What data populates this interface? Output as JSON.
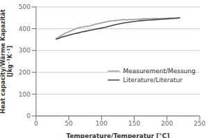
{
  "chart_data": {
    "type": "line",
    "xlabel": "Temperature/Temperatur [°C]",
    "ylabel": "Heat capacity/Wärme Kapazität\n[Jkg⁻¹K⁻¹]",
    "xlim": [
      0,
      250
    ],
    "ylim": [
      0,
      500
    ],
    "xticks": [
      0,
      50,
      100,
      150,
      200,
      250
    ],
    "yticks": [
      0,
      100,
      200,
      300,
      400,
      500
    ],
    "grid": true,
    "legend": "right",
    "series": [
      {
        "name": "Measurement/Messung",
        "color": "#999999",
        "x": [
          30,
          33,
          36,
          39,
          42,
          45,
          48,
          51,
          54,
          57,
          60,
          63,
          66,
          69,
          72,
          75,
          78,
          81,
          84,
          87,
          90,
          93,
          96,
          99,
          102,
          105,
          108,
          111,
          114,
          117,
          120,
          123,
          126,
          129,
          132,
          135,
          138,
          141,
          144,
          147,
          150,
          153,
          156,
          159,
          162,
          165,
          168,
          171,
          174,
          177,
          180,
          185,
          190,
          195,
          200,
          205,
          210,
          215,
          220
        ],
        "values": [
          353,
          358,
          364,
          370,
          375,
          380,
          384,
          387,
          391,
          395,
          399,
          402,
          405,
          407,
          408,
          410,
          411,
          412,
          414,
          417,
          420,
          422,
          424,
          426,
          428,
          430,
          432,
          434,
          435,
          436,
          437,
          438,
          439,
          440,
          441,
          442,
          440,
          441,
          442,
          441,
          443,
          443,
          444,
          444,
          445,
          446,
          445,
          445,
          446,
          446,
          447,
          447,
          447,
          448,
          448,
          449,
          449,
          450,
          451
        ]
      },
      {
        "name": "Literature/Literatur",
        "color": "#444444",
        "x": [
          30,
          35,
          40,
          45,
          50,
          55,
          60,
          65,
          70,
          75,
          80,
          85,
          90,
          95,
          100,
          105,
          110,
          115,
          120,
          125,
          130,
          135,
          140,
          145,
          150,
          155,
          160,
          165,
          170,
          175,
          180,
          185,
          190,
          195,
          200,
          205,
          210,
          215,
          220
        ],
        "values": [
          352,
          356,
          362,
          366,
          370,
          374,
          378,
          381,
          385,
          388,
          391,
          394,
          397,
          400,
          403,
          406,
          410,
          414,
          418,
          421,
          424,
          427,
          429,
          431,
          433,
          435,
          437,
          438,
          439,
          440,
          441,
          442,
          443,
          444,
          445,
          446,
          447,
          448,
          450
        ]
      }
    ]
  }
}
